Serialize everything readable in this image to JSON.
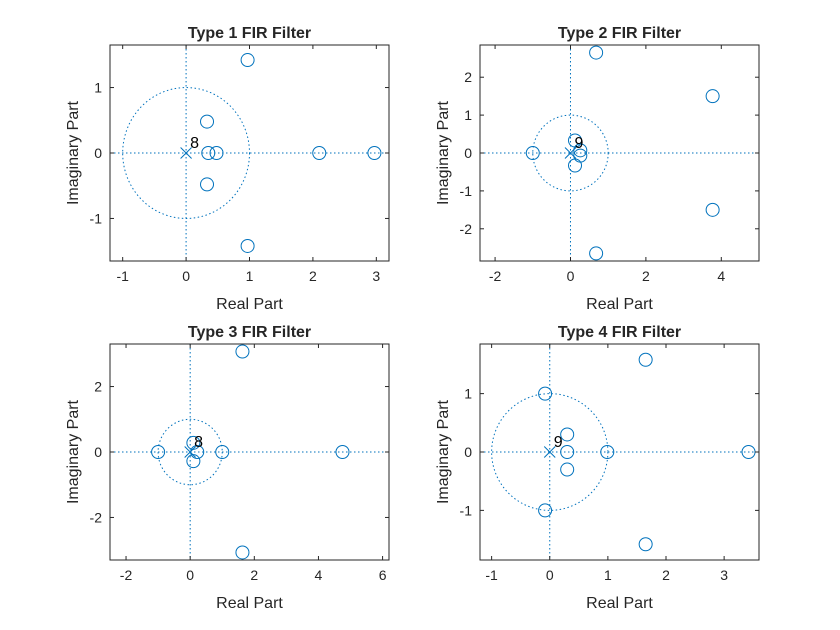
{
  "colors": {
    "marker": "#0072bd",
    "axis": "#262626",
    "background": "#ffffff"
  },
  "chart_data": [
    {
      "type": "scatter",
      "title": "Type 1 FIR Filter",
      "xlabel": "Real Part",
      "ylabel": "Imaginary Part",
      "xlim": [
        -1.2,
        3.2
      ],
      "ylim": [
        -1.65,
        1.65
      ],
      "xticks": [
        -1,
        0,
        1,
        2,
        3
      ],
      "yticks": [
        -1,
        0,
        1
      ],
      "grid": false,
      "unit_circle": true,
      "zeros": [
        [
          0.97,
          1.42
        ],
        [
          0.97,
          -1.42
        ],
        [
          0.33,
          0.48
        ],
        [
          0.33,
          -0.48
        ],
        [
          0.35,
          0
        ],
        [
          0.48,
          0
        ],
        [
          2.1,
          0
        ],
        [
          2.97,
          0
        ]
      ],
      "poles": [
        [
          0,
          0
        ]
      ],
      "pole_multiplicity": "8"
    },
    {
      "type": "scatter",
      "title": "Type 2 FIR Filter",
      "xlabel": "Real Part",
      "ylabel": "Imaginary Part",
      "xlim": [
        -2.4,
        5.0
      ],
      "ylim": [
        -2.85,
        2.85
      ],
      "xticks": [
        -2,
        0,
        2,
        4
      ],
      "yticks": [
        -2,
        -1,
        0,
        1,
        2
      ],
      "grid": false,
      "unit_circle": true,
      "zeros": [
        [
          0.68,
          2.65
        ],
        [
          0.68,
          -2.65
        ],
        [
          3.77,
          1.5
        ],
        [
          3.77,
          -1.5
        ],
        [
          -1.0,
          0
        ],
        [
          0.12,
          0.33
        ],
        [
          0.12,
          -0.33
        ],
        [
          0.26,
          0.07
        ],
        [
          0.26,
          -0.07
        ]
      ],
      "poles": [
        [
          0,
          0
        ]
      ],
      "pole_multiplicity": "9"
    },
    {
      "type": "scatter",
      "title": "Type 3 FIR Filter",
      "xlabel": "Real Part",
      "ylabel": "Imaginary Part",
      "xlim": [
        -2.5,
        6.2
      ],
      "ylim": [
        -3.3,
        3.3
      ],
      "xticks": [
        -2,
        0,
        2,
        4,
        6
      ],
      "yticks": [
        -2,
        0,
        2
      ],
      "grid": false,
      "unit_circle": true,
      "zeros": [
        [
          1.63,
          3.07
        ],
        [
          1.63,
          -3.07
        ],
        [
          4.75,
          0
        ],
        [
          -1.0,
          0
        ],
        [
          1.0,
          0
        ],
        [
          0.1,
          0.28
        ],
        [
          0.1,
          -0.28
        ],
        [
          0.22,
          0
        ]
      ],
      "poles": [
        [
          0,
          0
        ]
      ],
      "pole_multiplicity": "8"
    },
    {
      "type": "scatter",
      "title": "Type 4 FIR Filter",
      "xlabel": "Real Part",
      "ylabel": "Imaginary Part",
      "xlim": [
        -1.2,
        3.6
      ],
      "ylim": [
        -1.85,
        1.85
      ],
      "xticks": [
        -1,
        0,
        1,
        2,
        3
      ],
      "yticks": [
        -1,
        0,
        1
      ],
      "grid": false,
      "unit_circle": true,
      "zeros": [
        [
          1.65,
          1.58
        ],
        [
          1.65,
          -1.58
        ],
        [
          -0.08,
          1.0
        ],
        [
          -0.08,
          -1.0
        ],
        [
          0.3,
          0.3
        ],
        [
          0.3,
          -0.3
        ],
        [
          0.3,
          0
        ],
        [
          0.99,
          0
        ],
        [
          3.42,
          0
        ]
      ],
      "poles": [
        [
          0,
          0
        ]
      ],
      "pole_multiplicity": "9"
    }
  ]
}
